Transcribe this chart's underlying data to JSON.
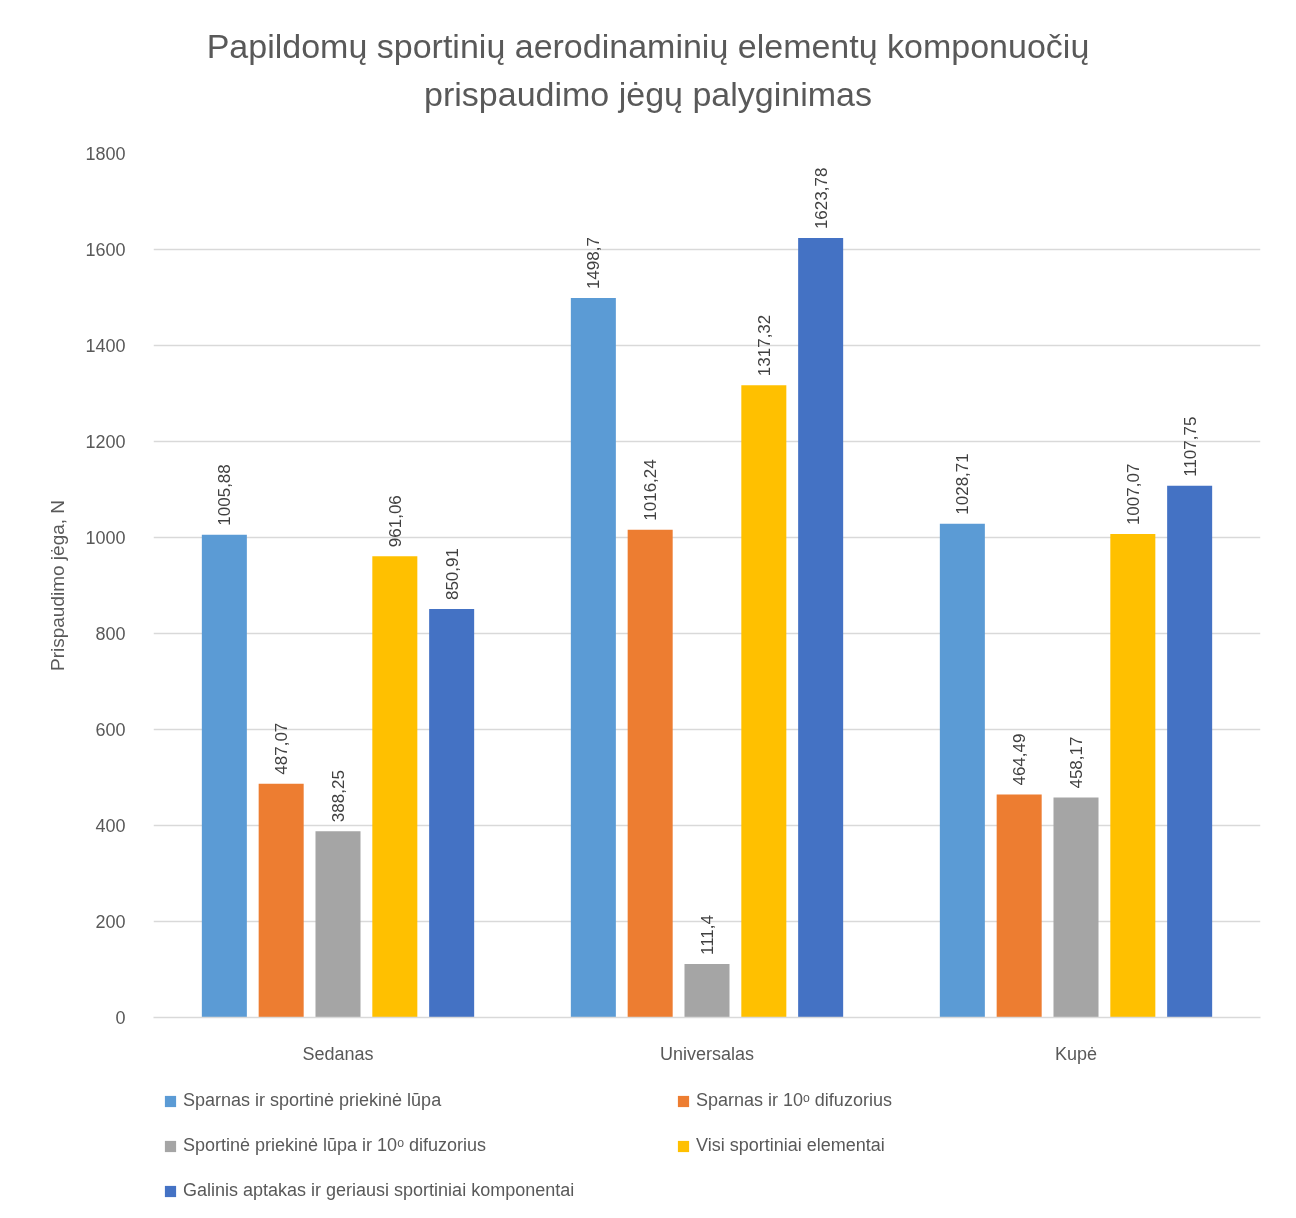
{
  "chart_data": {
    "type": "bar",
    "title": "Papildomų sportinių aerodinaminių elementų komponuočių prispaudimo jėgų palyginimas",
    "ylabel": "Prispaudimo jėga, N",
    "categories": [
      "Sedanas",
      "Universalas",
      "Kupė"
    ],
    "series": [
      {
        "name": "Sparnas ir sportinė priekinė lūpa",
        "color": "#5b9bd5",
        "values": [
          1005.88,
          1498.7,
          1028.71
        ],
        "value_labels": [
          "1005,88",
          "1498,7",
          "1028,71"
        ]
      },
      {
        "name": "Sparnas ir 10ᵒ difuzorius",
        "color": "#ed7d31",
        "values": [
          487.07,
          1016.24,
          464.49
        ],
        "value_labels": [
          "487,07",
          "1016,24",
          "464,49"
        ]
      },
      {
        "name": "Sportinė priekinė lūpa ir 10ᵒ difuzorius",
        "color": "#a5a5a5",
        "values": [
          388.25,
          111.4,
          458.17
        ],
        "value_labels": [
          "388,25",
          "111,4",
          "458,17"
        ]
      },
      {
        "name": "Visi sportiniai elementai",
        "color": "#ffc000",
        "values": [
          961.06,
          1317.32,
          1007.07
        ],
        "value_labels": [
          "961,06",
          "1317,32",
          "1007,07"
        ]
      },
      {
        "name": "Galinis aptakas ir geriausi sportiniai komponentai",
        "color": "#4472c4",
        "values": [
          850.91,
          1623.78,
          1107.75
        ],
        "value_labels": [
          "850,91",
          "1623,78",
          "1107,75"
        ]
      }
    ],
    "ylim": [
      0,
      1800
    ],
    "yticks": [
      0,
      200,
      400,
      600,
      800,
      1000,
      1200,
      1400,
      1600,
      1800
    ],
    "grid": "y",
    "legend": "bottom"
  }
}
